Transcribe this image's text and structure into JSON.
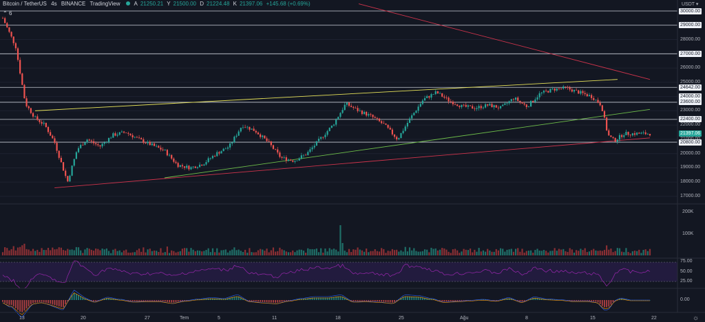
{
  "header": {
    "symbol": "Bitcoin / TetherUS",
    "interval": "4s",
    "exchange": "BINANCE",
    "source": "TradingView",
    "open_label": "A",
    "open": "21250.21",
    "high_label": "Y",
    "high": "21500.00",
    "low_label": "D",
    "low": "21224.48",
    "close_label": "K",
    "close": "21397.06",
    "change": "+145.68 (+0.69%)",
    "indicators_count": "6",
    "currency": "USDT"
  },
  "colors": {
    "background": "#131722",
    "up": "#26a69a",
    "down": "#ef5350",
    "yellow_line": "#e8e35a",
    "green_line": "#6fbf4a",
    "red_line": "#d0344c",
    "rsi_band": "#2a1e4a",
    "rsi_line": "#9c27b0"
  },
  "price_axis": {
    "labels": [
      "29000.00",
      "28000.00",
      "27000.00",
      "26000.00",
      "25000.00",
      "24000.00",
      "23000.00",
      "22000.00",
      "21000.00",
      "20000.00",
      "19000.00",
      "18000.00",
      "17000.00"
    ],
    "level_tags": [
      "30000.00",
      "29000.00",
      "27000.00",
      "24642.00",
      "24000.00",
      "23600.00",
      "22400.00",
      "20800.00"
    ],
    "current_price_tag": "21397.06"
  },
  "volume_axis": {
    "labels": [
      "200K",
      "100K"
    ]
  },
  "rsi_axis": {
    "labels": [
      "75.00",
      "50.00",
      "25.00"
    ]
  },
  "macd_axis": {
    "labels": [
      "0.00"
    ]
  },
  "time_axis": {
    "labels": [
      "13",
      "20",
      "27",
      "Tem",
      "5",
      "11",
      "18",
      "25",
      "Ağu",
      "8",
      "15",
      "22"
    ]
  },
  "chart_data": {
    "type": "candlestick",
    "horizontal_levels": [
      30000,
      29000,
      27000,
      24642,
      23600,
      22400,
      20800
    ],
    "trendlines": [
      {
        "color": "yellow",
        "from": [
          0.05,
          23000
        ],
        "to": [
          0.95,
          25200
        ]
      },
      {
        "color": "green",
        "from": [
          0.25,
          18300
        ],
        "to": [
          1.0,
          23100
        ]
      },
      {
        "color": "red",
        "from": [
          0.08,
          17600
        ],
        "to": [
          1.0,
          21100
        ]
      },
      {
        "color": "red",
        "from": [
          0.55,
          30500
        ],
        "to": [
          1.0,
          25200
        ]
      }
    ],
    "price_path": [
      [
        0.0,
        29500
      ],
      [
        0.02,
        27500
      ],
      [
        0.035,
        23500
      ],
      [
        0.05,
        22500
      ],
      [
        0.065,
        22000
      ],
      [
        0.08,
        20800
      ],
      [
        0.1,
        18000
      ],
      [
        0.115,
        20300
      ],
      [
        0.13,
        21000
      ],
      [
        0.15,
        20500
      ],
      [
        0.17,
        21300
      ],
      [
        0.19,
        21500
      ],
      [
        0.21,
        21000
      ],
      [
        0.23,
        20600
      ],
      [
        0.25,
        20200
      ],
      [
        0.27,
        19200
      ],
      [
        0.29,
        19000
      ],
      [
        0.31,
        19300
      ],
      [
        0.33,
        20000
      ],
      [
        0.35,
        20500
      ],
      [
        0.37,
        22000
      ],
      [
        0.39,
        21600
      ],
      [
        0.41,
        20800
      ],
      [
        0.43,
        19700
      ],
      [
        0.45,
        19500
      ],
      [
        0.47,
        20000
      ],
      [
        0.49,
        21000
      ],
      [
        0.51,
        22000
      ],
      [
        0.53,
        23500
      ],
      [
        0.55,
        23000
      ],
      [
        0.57,
        22600
      ],
      [
        0.59,
        22000
      ],
      [
        0.61,
        21000
      ],
      [
        0.63,
        22500
      ],
      [
        0.65,
        23800
      ],
      [
        0.67,
        24300
      ],
      [
        0.69,
        23700
      ],
      [
        0.71,
        23300
      ],
      [
        0.73,
        23200
      ],
      [
        0.75,
        23400
      ],
      [
        0.77,
        23200
      ],
      [
        0.79,
        23900
      ],
      [
        0.81,
        23300
      ],
      [
        0.83,
        24200
      ],
      [
        0.85,
        24500
      ],
      [
        0.87,
        24600
      ],
      [
        0.89,
        24300
      ],
      [
        0.91,
        24000
      ],
      [
        0.925,
        23400
      ],
      [
        0.935,
        21300
      ],
      [
        0.945,
        20900
      ],
      [
        0.96,
        21400
      ]
    ]
  }
}
